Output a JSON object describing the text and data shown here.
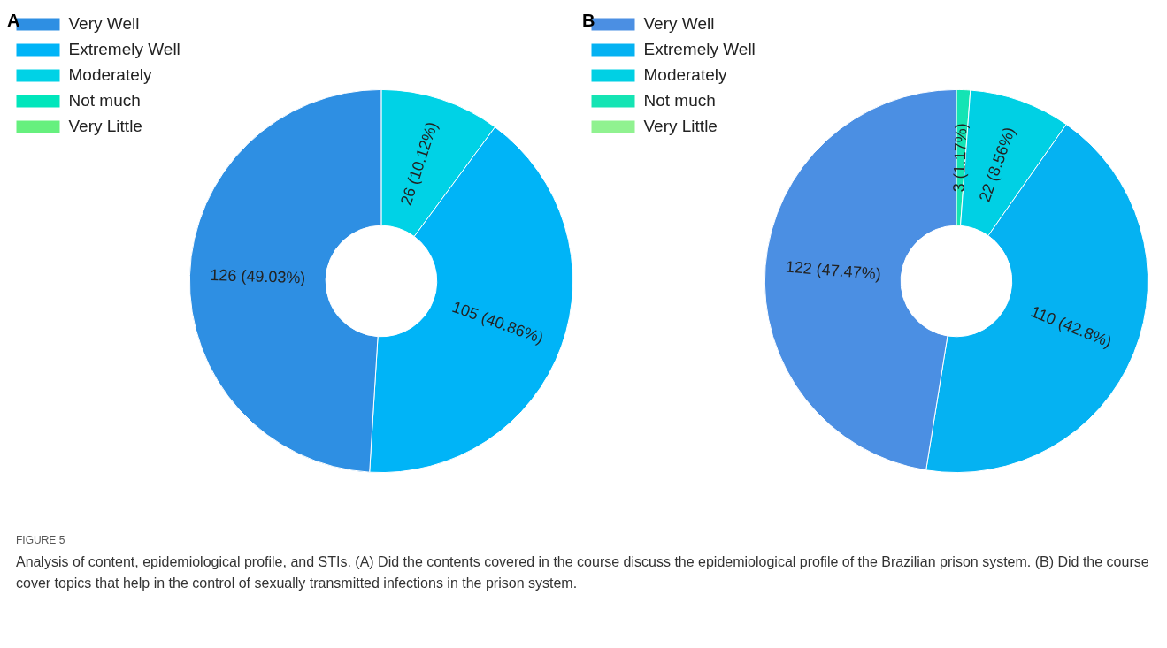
{
  "chart_data": [
    {
      "type": "donut",
      "title": "A",
      "categories": [
        "Very Well",
        "Extremely Well",
        "Moderately",
        "Not much",
        "Very Little"
      ],
      "values": [
        126,
        105,
        26,
        0,
        0
      ],
      "colors": [
        "#2e8fe3",
        "#00b4f7",
        "#00d2e6",
        "#00e6bc",
        "#66f07e"
      ],
      "value_labels": [
        "126 (49.03%)",
        "105 (40.86%)",
        "26 (10.12%)",
        null,
        null
      ],
      "legend": "top left",
      "annotations": [
        "FIGURE 5",
        "Analysis of content, epidemiological profile, and STIs. (A) Did the contents covered in the course discuss the epidemiological profile of the Brazilian prison system. (B) Did the course cover topics that help in the control of sexually transmitted infections in the prison system."
      ]
    },
    {
      "type": "donut",
      "title": "B",
      "categories": [
        "Very Well",
        "Extremely Well",
        "Moderately",
        "Not much",
        "Very Little"
      ],
      "values": [
        122,
        110,
        22,
        3,
        0
      ],
      "colors": [
        "#4b8fe3",
        "#05b2f2",
        "#00d0e4",
        "#14e4b4",
        "#90f290"
      ],
      "value_labels": [
        "122 (47.47%)",
        "110 (42.8%)",
        "22 (8.56%)",
        "3 (1.17%)",
        null
      ],
      "legend": "top left"
    }
  ]
}
